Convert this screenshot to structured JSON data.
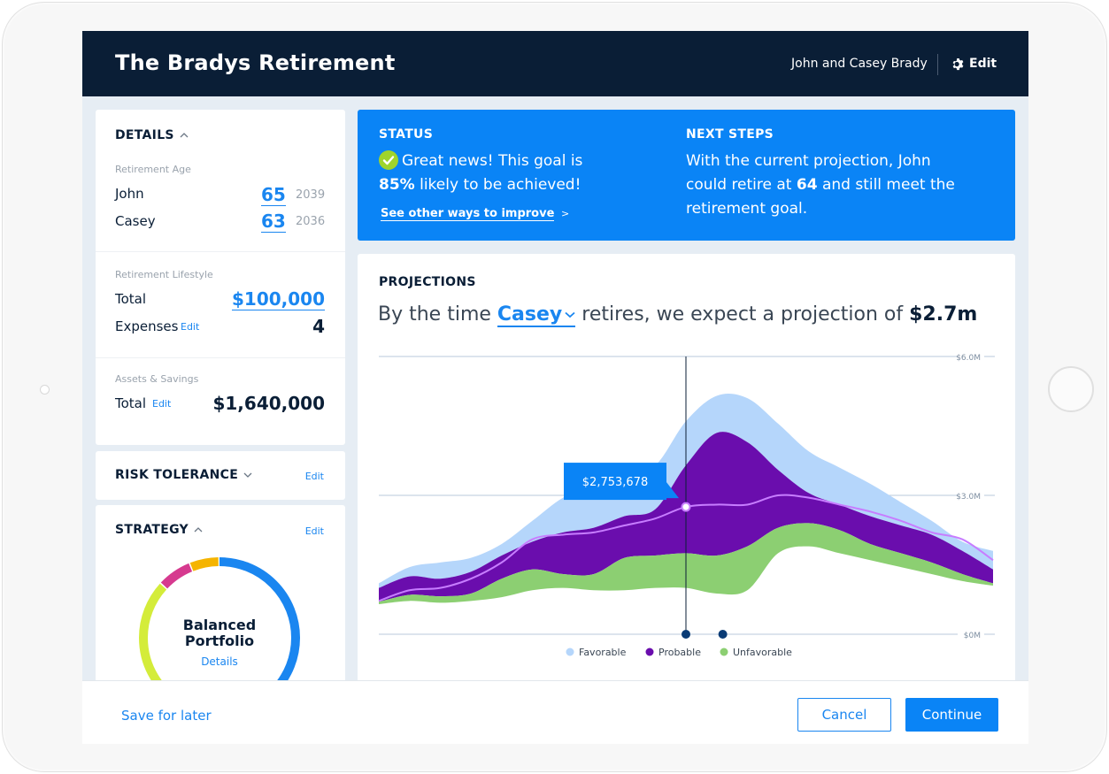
{
  "header": {
    "title": "The Bradys Retirement",
    "user": "John and Casey Brady",
    "edit_label": "Edit"
  },
  "details": {
    "title": "DETAILS",
    "retirement_age_label": "Retirement Age",
    "people": [
      {
        "name": "John",
        "age": "65",
        "year": "2039"
      },
      {
        "name": "Casey",
        "age": "63",
        "year": "2036"
      }
    ],
    "lifestyle_label": "Retirement Lifestyle",
    "total_label": "Total",
    "total_value": "$100,000",
    "expenses_label": "Expenses",
    "expenses_edit": "Edit",
    "expenses_value": "4",
    "assets_label": "Assets & Savings",
    "assets_total_label": "Total",
    "assets_edit": "Edit",
    "assets_value": "$1,640,000"
  },
  "risk": {
    "title": "RISK TOLERANCE",
    "edit": "Edit"
  },
  "strategy": {
    "title": "STRATEGY",
    "edit": "Edit",
    "portfolio_line1": "Balanced",
    "portfolio_line2": "Portfolio",
    "details_link": "Details",
    "segments": [
      {
        "color": "#1a86f0",
        "share": 0.55
      },
      {
        "color": "#d4ec3a",
        "share": 0.32
      },
      {
        "color": "#d63a8f",
        "share": 0.07
      },
      {
        "color": "#f5b400",
        "share": 0.06
      }
    ]
  },
  "status": {
    "title": "STATUS",
    "line1": "Great news! This goal is",
    "percent": "85%",
    "line2_rest": " likely to be achieved!",
    "improve_link": "See other ways to improve",
    "improve_arrow": ">"
  },
  "next_steps": {
    "title": "NEXT STEPS",
    "text_before": "With the current projection, John could retire at ",
    "age": "64",
    "text_after": " and still meet the retirement goal."
  },
  "projections": {
    "title": "PROJECTIONS",
    "sentence_start": "By the time ",
    "person": "Casey",
    "sentence_mid": " retires, we expect a projection of ",
    "amount": "$2.7m",
    "tooltip": "$2,753,678"
  },
  "chart_data": {
    "type": "area",
    "y_ticks": [
      "$6.0M",
      "$3.0M",
      "$0M"
    ],
    "ylim": [
      0,
      6.0
    ],
    "legend": [
      "Favorable",
      "Probable",
      "Unfavorable"
    ],
    "colors": {
      "Favorable": "#b5d6fb",
      "Probable": "#6a0dad",
      "Unfavorable": "#8ccf72",
      "median": "#c77dff"
    },
    "x": [
      0,
      1,
      2,
      3,
      4,
      5,
      6,
      7,
      8,
      9,
      10,
      11,
      12,
      13,
      14,
      15,
      16,
      17,
      18,
      19,
      20
    ],
    "series": [
      {
        "name": "Favorable",
        "upper": [
          1.1,
          1.45,
          1.55,
          1.65,
          1.95,
          2.45,
          2.95,
          3.2,
          3.5,
          3.65,
          4.6,
          5.15,
          5.1,
          4.55,
          3.95,
          3.6,
          3.25,
          2.85,
          2.45,
          2.0,
          1.8
        ]
      },
      {
        "name": "Probable",
        "upper": [
          1.0,
          1.25,
          1.2,
          1.35,
          1.7,
          2.0,
          2.2,
          2.3,
          2.55,
          2.7,
          3.65,
          4.35,
          4.15,
          3.55,
          3.05,
          2.8,
          2.55,
          2.35,
          2.15,
          1.8,
          1.4
        ]
      },
      {
        "name": "Unfavorable",
        "upper": [
          0.7,
          0.85,
          0.82,
          0.88,
          1.2,
          1.4,
          1.3,
          1.3,
          1.65,
          1.7,
          1.75,
          1.7,
          1.9,
          2.3,
          2.4,
          2.25,
          1.95,
          1.75,
          1.55,
          1.3,
          1.1
        ]
      },
      {
        "name": "Lower",
        "upper": [
          0.65,
          0.72,
          0.68,
          0.72,
          0.8,
          0.95,
          1.0,
          0.95,
          0.95,
          1.0,
          1.0,
          0.88,
          0.95,
          1.75,
          1.9,
          1.75,
          1.6,
          1.45,
          1.3,
          1.15,
          1.05
        ]
      }
    ],
    "median": [
      0.72,
      0.95,
      1.0,
      1.2,
      1.55,
      2.05,
      2.15,
      2.2,
      2.35,
      2.5,
      2.75,
      2.8,
      2.8,
      3.0,
      2.95,
      2.8,
      2.65,
      2.45,
      2.2,
      2.05,
      1.6
    ],
    "marker_index": 10,
    "markers_x": [
      10,
      11.2
    ]
  },
  "footer": {
    "save_later": "Save for later",
    "cancel": "Cancel",
    "continue": "Continue"
  }
}
